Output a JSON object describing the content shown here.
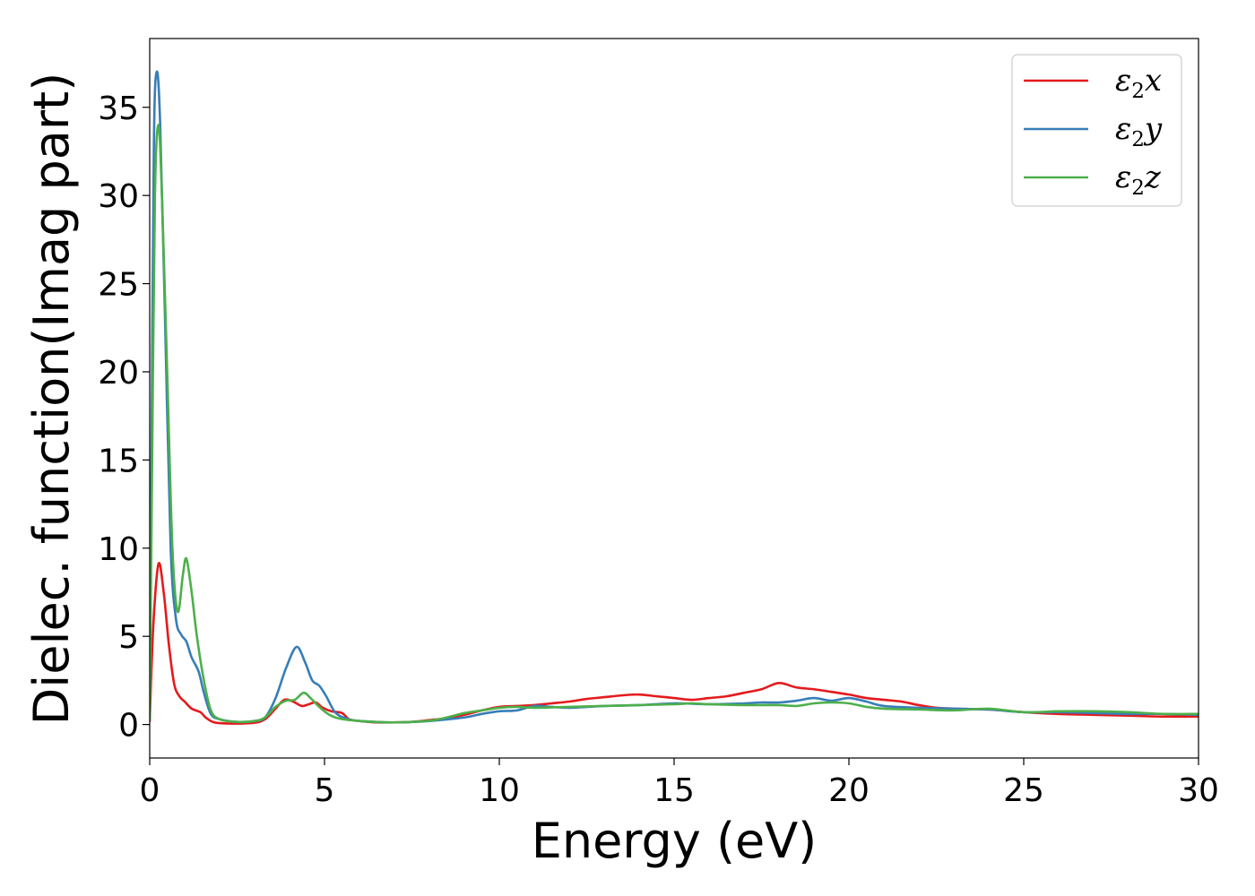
{
  "chart_data": {
    "type": "line",
    "title": "",
    "xlabel": "Energy (eV)",
    "ylabel": "Dielec. function(Imag part)",
    "xlim": [
      0,
      30
    ],
    "ylim": [
      -1.9,
      38.9
    ],
    "xticks": [
      0,
      5,
      10,
      15,
      20,
      25,
      30
    ],
    "yticks": [
      0,
      5,
      10,
      15,
      20,
      25,
      30,
      35
    ],
    "grid": false,
    "legend_position": "top-right",
    "series": [
      {
        "name": "ε₂x",
        "legend_base": "ε",
        "legend_sub": "2",
        "legend_suffix": "x",
        "color": "#e41a1c",
        "points": [
          [
            0,
            0.2
          ],
          [
            0.1,
            5.5
          ],
          [
            0.25,
            9.1
          ],
          [
            0.4,
            7.5
          ],
          [
            0.55,
            4.5
          ],
          [
            0.7,
            2.3
          ],
          [
            0.85,
            1.6
          ],
          [
            1.0,
            1.3
          ],
          [
            1.2,
            0.9
          ],
          [
            1.45,
            0.7
          ],
          [
            1.6,
            0.4
          ],
          [
            1.8,
            0.15
          ],
          [
            2.0,
            0.08
          ],
          [
            2.5,
            0.05
          ],
          [
            3.0,
            0.1
          ],
          [
            3.3,
            0.3
          ],
          [
            3.6,
            0.9
          ],
          [
            3.85,
            1.4
          ],
          [
            4.1,
            1.3
          ],
          [
            4.35,
            1.05
          ],
          [
            4.55,
            1.15
          ],
          [
            4.75,
            1.25
          ],
          [
            4.95,
            0.95
          ],
          [
            5.2,
            0.75
          ],
          [
            5.5,
            0.65
          ],
          [
            5.7,
            0.3
          ],
          [
            6.0,
            0.2
          ],
          [
            6.5,
            0.12
          ],
          [
            7.0,
            0.12
          ],
          [
            7.5,
            0.15
          ],
          [
            8.0,
            0.25
          ],
          [
            8.5,
            0.35
          ],
          [
            9.0,
            0.55
          ],
          [
            9.5,
            0.8
          ],
          [
            10.0,
            1.0
          ],
          [
            10.5,
            1.05
          ],
          [
            11.0,
            1.1
          ],
          [
            11.5,
            1.2
          ],
          [
            12.0,
            1.3
          ],
          [
            12.5,
            1.45
          ],
          [
            13.0,
            1.55
          ],
          [
            13.5,
            1.65
          ],
          [
            14.0,
            1.7
          ],
          [
            14.5,
            1.6
          ],
          [
            15.0,
            1.5
          ],
          [
            15.5,
            1.4
          ],
          [
            16.0,
            1.5
          ],
          [
            16.5,
            1.6
          ],
          [
            17.0,
            1.8
          ],
          [
            17.5,
            2.0
          ],
          [
            18.0,
            2.35
          ],
          [
            18.5,
            2.1
          ],
          [
            19.0,
            2.0
          ],
          [
            19.5,
            1.85
          ],
          [
            20.0,
            1.7
          ],
          [
            20.5,
            1.5
          ],
          [
            21.0,
            1.4
          ],
          [
            21.5,
            1.3
          ],
          [
            22.0,
            1.1
          ],
          [
            22.5,
            0.95
          ],
          [
            23.0,
            0.9
          ],
          [
            24.0,
            0.85
          ],
          [
            25.0,
            0.7
          ],
          [
            26.0,
            0.6
          ],
          [
            27.0,
            0.55
          ],
          [
            28.0,
            0.5
          ],
          [
            29.0,
            0.45
          ],
          [
            30.0,
            0.45
          ]
        ]
      },
      {
        "name": "ε₂y",
        "legend_base": "ε",
        "legend_sub": "2",
        "legend_suffix": "y",
        "color": "#377eb8",
        "points": [
          [
            0,
            0.3
          ],
          [
            0.05,
            15
          ],
          [
            0.12,
            33
          ],
          [
            0.2,
            37
          ],
          [
            0.3,
            34
          ],
          [
            0.45,
            22
          ],
          [
            0.6,
            10
          ],
          [
            0.75,
            6.0
          ],
          [
            0.9,
            5.1
          ],
          [
            1.05,
            4.7
          ],
          [
            1.2,
            3.8
          ],
          [
            1.4,
            3.0
          ],
          [
            1.55,
            1.8
          ],
          [
            1.75,
            0.6
          ],
          [
            2.0,
            0.3
          ],
          [
            2.5,
            0.15
          ],
          [
            3.0,
            0.2
          ],
          [
            3.3,
            0.4
          ],
          [
            3.6,
            1.5
          ],
          [
            3.9,
            3.2
          ],
          [
            4.2,
            4.4
          ],
          [
            4.45,
            3.5
          ],
          [
            4.65,
            2.5
          ],
          [
            4.85,
            2.2
          ],
          [
            5.05,
            1.6
          ],
          [
            5.3,
            0.7
          ],
          [
            5.6,
            0.35
          ],
          [
            6.0,
            0.2
          ],
          [
            7.0,
            0.12
          ],
          [
            8.0,
            0.2
          ],
          [
            9.0,
            0.4
          ],
          [
            9.5,
            0.6
          ],
          [
            10.0,
            0.75
          ],
          [
            10.5,
            0.8
          ],
          [
            11.0,
            1.05
          ],
          [
            11.5,
            1.0
          ],
          [
            12.0,
            0.95
          ],
          [
            13.0,
            1.05
          ],
          [
            14.0,
            1.1
          ],
          [
            15.0,
            1.2
          ],
          [
            16.0,
            1.15
          ],
          [
            17.0,
            1.2
          ],
          [
            17.5,
            1.25
          ],
          [
            18.0,
            1.25
          ],
          [
            18.5,
            1.35
          ],
          [
            19.0,
            1.5
          ],
          [
            19.5,
            1.35
          ],
          [
            20.0,
            1.5
          ],
          [
            20.5,
            1.3
          ],
          [
            21.0,
            1.05
          ],
          [
            22.0,
            0.95
          ],
          [
            23.0,
            0.9
          ],
          [
            24.0,
            0.85
          ],
          [
            25.0,
            0.7
          ],
          [
            26.0,
            0.7
          ],
          [
            27.0,
            0.65
          ],
          [
            28.0,
            0.6
          ],
          [
            29.0,
            0.6
          ],
          [
            30.0,
            0.55
          ]
        ]
      },
      {
        "name": "ε₂z",
        "legend_base": "ε",
        "legend_sub": "2",
        "legend_suffix": "z",
        "color": "#4daf4a",
        "points": [
          [
            0,
            0.3
          ],
          [
            0.07,
            15
          ],
          [
            0.15,
            30
          ],
          [
            0.25,
            34
          ],
          [
            0.35,
            30
          ],
          [
            0.5,
            20
          ],
          [
            0.65,
            10
          ],
          [
            0.8,
            6.4
          ],
          [
            0.95,
            8.5
          ],
          [
            1.05,
            9.4
          ],
          [
            1.2,
            7.5
          ],
          [
            1.35,
            5.0
          ],
          [
            1.55,
            2.5
          ],
          [
            1.75,
            0.8
          ],
          [
            2.0,
            0.3
          ],
          [
            2.5,
            0.15
          ],
          [
            3.0,
            0.2
          ],
          [
            3.3,
            0.4
          ],
          [
            3.6,
            1.0
          ],
          [
            3.9,
            1.35
          ],
          [
            4.15,
            1.4
          ],
          [
            4.4,
            1.8
          ],
          [
            4.6,
            1.5
          ],
          [
            4.85,
            1.0
          ],
          [
            5.1,
            0.6
          ],
          [
            5.4,
            0.35
          ],
          [
            6.0,
            0.2
          ],
          [
            7.0,
            0.12
          ],
          [
            8.0,
            0.22
          ],
          [
            8.5,
            0.4
          ],
          [
            9.0,
            0.65
          ],
          [
            9.5,
            0.8
          ],
          [
            10.0,
            0.95
          ],
          [
            10.5,
            1.0
          ],
          [
            11.0,
            0.95
          ],
          [
            12.0,
            1.0
          ],
          [
            13.0,
            1.05
          ],
          [
            14.0,
            1.1
          ],
          [
            15.0,
            1.15
          ],
          [
            15.5,
            1.2
          ],
          [
            16.0,
            1.15
          ],
          [
            17.0,
            1.1
          ],
          [
            18.0,
            1.1
          ],
          [
            18.5,
            1.05
          ],
          [
            19.0,
            1.2
          ],
          [
            19.5,
            1.25
          ],
          [
            20.0,
            1.2
          ],
          [
            20.5,
            1.0
          ],
          [
            21.0,
            0.9
          ],
          [
            22.0,
            0.85
          ],
          [
            23.0,
            0.8
          ],
          [
            24.0,
            0.9
          ],
          [
            25.0,
            0.7
          ],
          [
            26.0,
            0.75
          ],
          [
            27.0,
            0.75
          ],
          [
            28.0,
            0.7
          ],
          [
            29.0,
            0.6
          ],
          [
            30.0,
            0.6
          ]
        ]
      }
    ]
  }
}
